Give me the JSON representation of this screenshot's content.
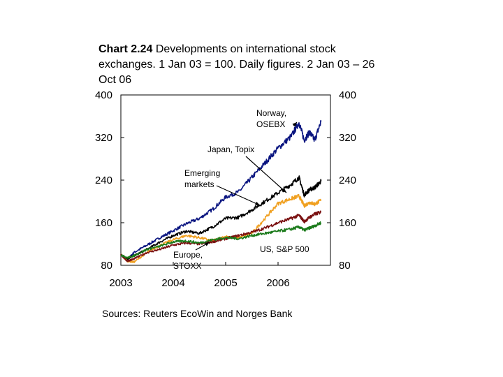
{
  "title_prefix": "Chart 2.24",
  "title_rest": "Developments on international stock exchanges. 1 Jan 03 = 100. Daily figures. 2 Jan 03 – 26 Oct 06",
  "source": "Sources: Reuters EcoWin and Norges Bank",
  "chart_data": {
    "type": "line",
    "ylim": [
      80,
      400
    ],
    "xlim": [
      2003.0,
      2007.0
    ],
    "y_ticks": [
      80,
      160,
      240,
      320,
      400
    ],
    "y_tick_labels": [
      "80",
      "160",
      "240",
      "320",
      "400"
    ],
    "x_ticks": [
      2003,
      2004,
      2005,
      2006
    ],
    "x_tick_labels": [
      "2003",
      "2004",
      "2005",
      "2006"
    ],
    "series": [
      {
        "name": "Norway, OSEBX",
        "color": "#0a1580",
        "x": [
          2003.0,
          2003.12,
          2003.25,
          2003.5,
          2003.75,
          2004.0,
          2004.25,
          2004.5,
          2004.75,
          2005.0,
          2005.25,
          2005.5,
          2005.75,
          2006.0,
          2006.25,
          2006.4,
          2006.5,
          2006.6,
          2006.7,
          2006.82
        ],
        "y": [
          100,
          90,
          104,
          118,
          132,
          145,
          158,
          168,
          185,
          208,
          218,
          245,
          272,
          300,
          322,
          348,
          315,
          330,
          315,
          350
        ]
      },
      {
        "name": "Emerging markets",
        "color": "#000000",
        "x": [
          2003.0,
          2003.12,
          2003.25,
          2003.5,
          2003.75,
          2004.0,
          2004.25,
          2004.5,
          2004.75,
          2005.0,
          2005.25,
          2005.5,
          2005.75,
          2006.0,
          2006.25,
          2006.4,
          2006.5,
          2006.6,
          2006.7,
          2006.82
        ],
        "y": [
          100,
          92,
          98,
          110,
          124,
          136,
          144,
          140,
          152,
          168,
          170,
          184,
          200,
          216,
          232,
          245,
          212,
          222,
          226,
          238
        ]
      },
      {
        "name": "Japan, Topix",
        "color": "#f0a020",
        "x": [
          2003.0,
          2003.12,
          2003.25,
          2003.5,
          2003.75,
          2004.0,
          2004.25,
          2004.5,
          2004.75,
          2005.0,
          2005.25,
          2005.5,
          2005.75,
          2006.0,
          2006.25,
          2006.4,
          2006.5,
          2006.6,
          2006.7,
          2006.82
        ],
        "y": [
          100,
          88,
          86,
          104,
          118,
          128,
          136,
          132,
          126,
          134,
          132,
          140,
          168,
          196,
          205,
          210,
          192,
          198,
          195,
          202
        ]
      },
      {
        "name": "Europe, STOXX",
        "color": "#7a1010",
        "x": [
          2003.0,
          2003.12,
          2003.25,
          2003.5,
          2003.75,
          2004.0,
          2004.25,
          2004.5,
          2004.75,
          2005.0,
          2005.25,
          2005.5,
          2005.75,
          2006.0,
          2006.25,
          2006.4,
          2006.5,
          2006.6,
          2006.7,
          2006.82
        ],
        "y": [
          100,
          88,
          92,
          104,
          110,
          118,
          122,
          120,
          124,
          130,
          136,
          142,
          150,
          160,
          168,
          174,
          162,
          170,
          176,
          180
        ]
      },
      {
        "name": "US, S&P 500",
        "color": "#1a7a1a",
        "x": [
          2003.0,
          2003.12,
          2003.25,
          2003.5,
          2003.75,
          2004.0,
          2004.25,
          2004.5,
          2004.75,
          2005.0,
          2005.25,
          2005.5,
          2005.75,
          2006.0,
          2006.25,
          2006.4,
          2006.5,
          2006.6,
          2006.7,
          2006.82
        ],
        "y": [
          100,
          94,
          98,
          110,
          116,
          124,
          126,
          122,
          128,
          132,
          130,
          136,
          140,
          144,
          148,
          152,
          146,
          150,
          154,
          160
        ]
      }
    ],
    "annotations": [
      {
        "lines": [
          "Norway,",
          "OSEBX"
        ],
        "series": "Norway, OSEBX"
      },
      {
        "lines": [
          "Japan, Topix"
        ],
        "series": "Japan, Topix"
      },
      {
        "lines": [
          "Emerging",
          "markets"
        ],
        "series": "Emerging markets"
      },
      {
        "lines": [
          "US, S&P 500"
        ],
        "series": "US, S&P 500"
      },
      {
        "lines": [
          "Europe,",
          "STOXX"
        ],
        "series": "Europe, STOXX"
      }
    ]
  }
}
